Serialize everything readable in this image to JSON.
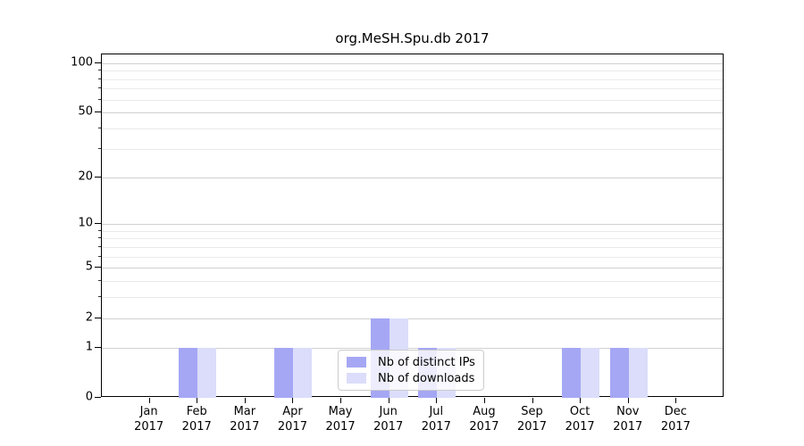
{
  "chart_data": {
    "type": "bar",
    "title": "org.MeSH.Spu.db 2017",
    "year": "2017",
    "categories": [
      "Jan",
      "Feb",
      "Mar",
      "Apr",
      "May",
      "Jun",
      "Jul",
      "Aug",
      "Sep",
      "Oct",
      "Nov",
      "Dec"
    ],
    "series": [
      {
        "name": "Nb of distinct IPs",
        "color": "#a5a7f4",
        "values": [
          0,
          1,
          0,
          1,
          0,
          2,
          1,
          0,
          0,
          1,
          1,
          0
        ]
      },
      {
        "name": "Nb of downloads",
        "color": "#dbddfa",
        "values": [
          0,
          1,
          0,
          1,
          0,
          2,
          1,
          0,
          0,
          1,
          1,
          0
        ]
      }
    ],
    "xlabel": "",
    "ylabel": "",
    "yscale": "log1p",
    "ylim": [
      0,
      113
    ],
    "yticks": [
      0,
      1,
      2,
      5,
      10,
      20,
      50,
      100
    ],
    "minor_yticks": [
      3,
      4,
      6,
      7,
      8,
      9,
      30,
      40,
      60,
      70,
      80,
      90
    ],
    "grid": "horizontal",
    "legend_position": "lower-center"
  }
}
